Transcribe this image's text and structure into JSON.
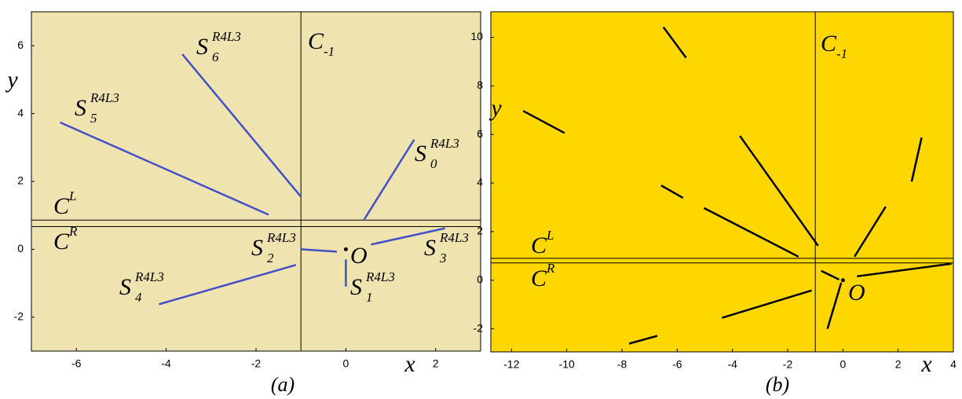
{
  "chart_data": [
    {
      "type": "segments",
      "background": "#efe3b0",
      "color": "#4450c8",
      "x_label": "x",
      "y_label": "y",
      "caption": "(a)",
      "xlim": [
        -7,
        3
      ],
      "ylim": [
        -3,
        7
      ],
      "xticks": [
        -6,
        -4,
        -2,
        0,
        2
      ],
      "yticks": [
        -2,
        0,
        2,
        4,
        6
      ],
      "vlines": [
        -1
      ],
      "hlines": [
        0.86,
        0.67
      ],
      "segments": [
        {
          "x": [
            -3.64,
            -1
          ],
          "y": [
            5.75,
            1.55
          ]
        },
        {
          "x": [
            -6.36,
            -1.72
          ],
          "y": [
            3.74,
            1.02
          ]
        },
        {
          "x": [
            0.4,
            1.52
          ],
          "y": [
            0.86,
            3.23
          ]
        },
        {
          "x": [
            -1,
            -0.2
          ],
          "y": [
            0,
            -0.07
          ]
        },
        {
          "x": [
            0.56,
            2.21
          ],
          "y": [
            0.14,
            0.62
          ]
        },
        {
          "x": [
            0,
            0
          ],
          "y": [
            -0.3,
            -1.1
          ]
        },
        {
          "x": [
            -4.16,
            -1.11
          ],
          "y": [
            -1.62,
            -0.46
          ]
        }
      ],
      "points": {
        "x": [
          0
        ],
        "y": [
          0
        ]
      },
      "annotations": [
        {
          "base": "S",
          "sup": "R4L3",
          "sub": "6"
        },
        {
          "base": "C",
          "sub": "-1"
        },
        {
          "base": "S",
          "sup": "R4L3",
          "sub": "5"
        },
        {
          "base": "S",
          "sup": "R4L3",
          "sub": "0"
        },
        {
          "base": "C",
          "sup": "L"
        },
        {
          "base": "C",
          "sup": "R"
        },
        {
          "base": "S",
          "sup": "R4L3",
          "sub": "2"
        },
        {
          "base": "O"
        },
        {
          "base": "S",
          "sup": "R4L3",
          "sub": "3"
        },
        {
          "base": "S",
          "sup": "R4L3",
          "sub": "4"
        },
        {
          "base": "S",
          "sup": "R4L3",
          "sub": "1"
        }
      ]
    },
    {
      "type": "segments",
      "background": "#ffd700",
      "color": "#000000",
      "x_label": "x",
      "y_label": "y",
      "caption": "(b)",
      "xlim": [
        -12.75,
        4
      ],
      "ylim": [
        -2.95,
        11.05
      ],
      "xticks": [
        -12,
        -10,
        -8,
        -6,
        -4,
        -2,
        0,
        2,
        4
      ],
      "yticks": [
        -2,
        0,
        2,
        4,
        6,
        8,
        10
      ],
      "vlines": [
        -1
      ],
      "hlines": [
        0.9,
        0.71
      ],
      "segments": [
        {
          "x": [
            -11.58,
            -10.08
          ],
          "y": [
            6.97,
            6.06
          ]
        },
        {
          "x": [
            -6.5,
            -5.68
          ],
          "y": [
            10.42,
            9.16
          ]
        },
        {
          "x": [
            -6.58,
            -5.79
          ],
          "y": [
            3.9,
            3.39
          ]
        },
        {
          "x": [
            -5.03,
            -1.61
          ],
          "y": [
            2.97,
            0.97
          ]
        },
        {
          "x": [
            -3.73,
            -0.9
          ],
          "y": [
            5.94,
            1.42
          ]
        },
        {
          "x": [
            0.42,
            1.55
          ],
          "y": [
            0.97,
            3.03
          ]
        },
        {
          "x": [
            2.49,
            2.85
          ],
          "y": [
            4.06,
            5.87
          ]
        },
        {
          "x": [
            0.51,
            3.93
          ],
          "y": [
            0.16,
            0.68
          ]
        },
        {
          "x": [
            -7.74,
            -6.72
          ],
          "y": [
            -2.61,
            -2.29
          ]
        },
        {
          "x": [
            -4.38,
            -1.13
          ],
          "y": [
            -1.55,
            -0.42
          ]
        },
        {
          "x": [
            -0.56,
            -0.06
          ],
          "y": [
            -2,
            -0.1
          ]
        },
        {
          "x": [
            -0.79,
            -0.14
          ],
          "y": [
            0.39,
            0.03
          ]
        }
      ],
      "points": {
        "x": [
          0
        ],
        "y": [
          0
        ]
      },
      "annotations": [
        {
          "base": "C",
          "sub": "-1"
        },
        {
          "base": "C",
          "sup": "L"
        },
        {
          "base": "C",
          "sup": "R"
        },
        {
          "base": "O"
        }
      ]
    }
  ]
}
